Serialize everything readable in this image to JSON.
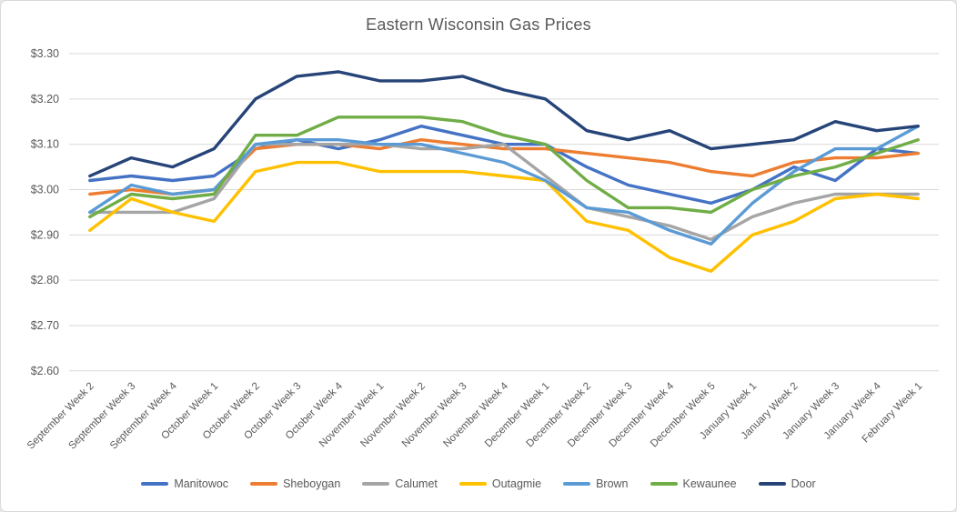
{
  "chart_data": {
    "type": "line",
    "title": "Eastern Wisconsin Gas Prices",
    "xlabel": "",
    "ylabel": "",
    "ylim": [
      2.6,
      3.3
    ],
    "ytick_step": 0.1,
    "yticks": [
      "$3.30",
      "$3.20",
      "$3.10",
      "$3.00",
      "$2.90",
      "$2.80",
      "$2.70",
      "$2.60"
    ],
    "grid": "horizontal",
    "legend_position": "bottom",
    "categories": [
      "September Week 2",
      "September Week 3",
      "September Week 4",
      "October Week 1",
      "October Week 2",
      "October Week 3",
      "October Week 4",
      "November Week 1",
      "November Week 2",
      "November Week 3",
      "November Week 4",
      "December Week 1",
      "December Week 2",
      "December Week 3",
      "December Week 4",
      "December Week 5",
      "January Week 1",
      "January Week 2",
      "January Week 3",
      "January Week 4",
      "February Week 1"
    ],
    "series": [
      {
        "name": "Manitowoc",
        "color": "#4472C4",
        "values": [
          3.02,
          3.03,
          3.02,
          3.03,
          3.09,
          3.11,
          3.09,
          3.11,
          3.14,
          3.12,
          3.1,
          3.1,
          3.05,
          3.01,
          2.99,
          2.97,
          3.0,
          3.05,
          3.02,
          3.09,
          3.08
        ]
      },
      {
        "name": "Sheboygan",
        "color": "#ED7D31",
        "values": [
          2.99,
          3.0,
          2.99,
          3.0,
          3.09,
          3.1,
          3.1,
          3.09,
          3.11,
          3.1,
          3.09,
          3.09,
          3.08,
          3.07,
          3.06,
          3.04,
          3.03,
          3.06,
          3.07,
          3.07,
          3.08
        ]
      },
      {
        "name": "Calumet",
        "color": "#A5A5A5",
        "values": [
          2.95,
          2.95,
          2.95,
          2.98,
          3.1,
          3.1,
          3.1,
          3.1,
          3.09,
          3.09,
          3.1,
          3.03,
          2.96,
          2.94,
          2.92,
          2.89,
          2.94,
          2.97,
          2.99,
          2.99,
          2.99
        ]
      },
      {
        "name": "Outagmie",
        "color": "#FFC000",
        "values": [
          2.91,
          2.98,
          2.95,
          2.93,
          3.04,
          3.06,
          3.06,
          3.04,
          3.04,
          3.04,
          3.03,
          3.02,
          2.93,
          2.91,
          2.85,
          2.82,
          2.9,
          2.93,
          2.98,
          2.99,
          2.98
        ]
      },
      {
        "name": "Brown",
        "color": "#5B9BD5",
        "values": [
          2.95,
          3.01,
          2.99,
          3.0,
          3.1,
          3.11,
          3.11,
          3.1,
          3.1,
          3.08,
          3.06,
          3.02,
          2.96,
          2.95,
          2.91,
          2.88,
          2.97,
          3.04,
          3.09,
          3.09,
          3.14
        ]
      },
      {
        "name": "Kewaunee",
        "color": "#70AD47",
        "values": [
          2.94,
          2.99,
          2.98,
          2.99,
          3.12,
          3.12,
          3.16,
          3.16,
          3.16,
          3.15,
          3.12,
          3.1,
          3.02,
          2.96,
          2.96,
          2.95,
          3.0,
          3.03,
          3.05,
          3.08,
          3.11
        ]
      },
      {
        "name": "Door",
        "color": "#264478",
        "values": [
          3.03,
          3.07,
          3.05,
          3.09,
          3.2,
          3.25,
          3.26,
          3.24,
          3.24,
          3.25,
          3.22,
          3.2,
          3.13,
          3.11,
          3.13,
          3.09,
          3.1,
          3.11,
          3.15,
          3.13,
          3.14
        ]
      }
    ],
    "styles": {
      "grid_color": "#d9d9d9",
      "tick_label_color": "#595959",
      "title_color": "#595959",
      "line_width": 3.4
    }
  }
}
